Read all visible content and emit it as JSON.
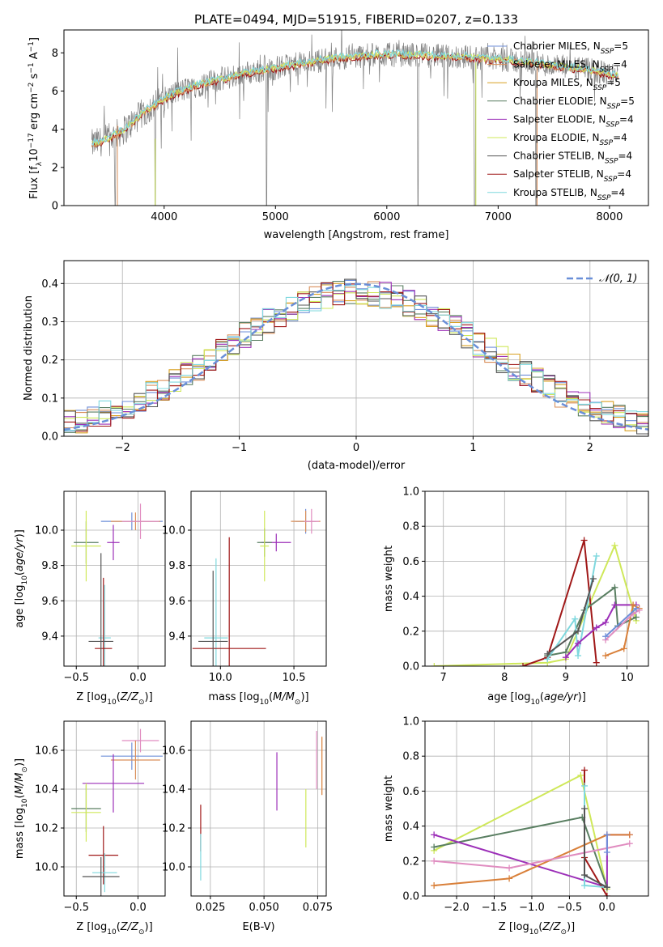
{
  "figure_title": "PLATE=0494, MJD=51915, FIBERID=0207, z=0.133",
  "colors": {
    "chabrier_miles": "#6f8fd9",
    "salpeter_miles": "#d98f5a",
    "kroupa_miles": "#d9a020",
    "chabrier_elodie": "#5a7f62",
    "salpeter_elodie": "#9c2fb8",
    "kroupa_elodie": "#cfe85a",
    "chabrier_stelib": "#555555",
    "salpeter_stelib": "#a01818",
    "kroupa_stelib": "#7fd8de",
    "data": "#808080",
    "pink": "#e08cc0",
    "orange": "#d9803a",
    "gaussian": "#6a8fd8"
  },
  "chart_data": [
    {
      "id": "spectrum",
      "type": "line",
      "title": "PLATE=0494, MJD=51915, FIBERID=0207, z=0.133",
      "xlabel": "wavelength [Angstrom, rest frame]",
      "ylabel": "Flux [f_λ 10^-17 erg cm^-2 s^-1 A^-1]",
      "xlim": [
        3100,
        8350
      ],
      "ylim": [
        0,
        9.2
      ],
      "xticks": [
        4000,
        5000,
        6000,
        7000,
        8000
      ],
      "yticks": [
        0,
        2,
        4,
        6,
        8
      ],
      "legend_position": "upper-right",
      "legend": [
        "Chabrier MILES, N_SSP=5",
        "Salpeter MILES, N_SSP=4",
        "Kroupa MILES, N_SSP=5",
        "Chabrier ELODIE, N_SSP=5",
        "Salpeter ELODIE, N_SSP=4",
        "Kroupa ELODIE, N_SSP=4",
        "Chabrier STELIB, N_SSP=4",
        "Salpeter STELIB, N_SSP=4",
        "Kroupa STELIB, N_SSP=4"
      ],
      "continuum": [
        [
          3350,
          3.2
        ],
        [
          3500,
          3.5
        ],
        [
          3650,
          4.0
        ],
        [
          3800,
          4.8
        ],
        [
          3950,
          5.4
        ],
        [
          4100,
          5.9
        ],
        [
          4300,
          6.3
        ],
        [
          4500,
          6.6
        ],
        [
          4700,
          6.9
        ],
        [
          4900,
          7.1
        ],
        [
          5100,
          7.3
        ],
        [
          5300,
          7.5
        ],
        [
          5500,
          7.7
        ],
        [
          5700,
          7.8
        ],
        [
          5900,
          7.9
        ],
        [
          6100,
          7.9
        ],
        [
          6300,
          7.9
        ],
        [
          6500,
          7.8
        ],
        [
          6700,
          7.8
        ],
        [
          6900,
          7.7
        ],
        [
          7100,
          7.6
        ],
        [
          7300,
          7.5
        ],
        [
          7500,
          7.3
        ],
        [
          7700,
          7.2
        ],
        [
          7900,
          7.0
        ],
        [
          8080,
          6.8
        ]
      ]
    },
    {
      "id": "residuals",
      "type": "histogram",
      "xlabel": "(data-model)/error",
      "ylabel": "Normed distribution",
      "xlim": [
        -2.5,
        2.5
      ],
      "ylim": [
        0,
        0.46
      ],
      "xticks": [
        -2,
        -1,
        0,
        1,
        2
      ],
      "yticks": [
        0.0,
        0.1,
        0.2,
        0.3,
        0.4
      ],
      "legend": [
        "𝒩(0, 1)"
      ],
      "legend_position": "upper-right",
      "bin_width": 0.1,
      "gaussian": {
        "mean": 0,
        "sigma": 1
      }
    },
    {
      "id": "age_vs_Z",
      "type": "errorbar",
      "xlabel": "Z [log10(Z/Z⊙)]",
      "ylabel": "age [log10(age/yr)]",
      "xlim": [
        -0.6,
        0.22
      ],
      "ylim": [
        9.23,
        10.22
      ],
      "xticks": [
        -0.5,
        0.0
      ],
      "yticks": [
        9.4,
        9.6,
        9.8,
        10.0
      ],
      "points": [
        {
          "c": "chabrier_miles",
          "x": -0.05,
          "y": 10.05,
          "xe": 0.25,
          "ye": 0.05
        },
        {
          "c": "salpeter_miles",
          "x": -0.02,
          "y": 10.05,
          "xe": 0.2,
          "ye": 0.05
        },
        {
          "c": "pink",
          "x": 0.02,
          "y": 10.05,
          "xe": 0.15,
          "ye": 0.1
        },
        {
          "c": "salpeter_elodie",
          "x": -0.2,
          "y": 9.93,
          "xe": 0.05,
          "ye": 0.1
        },
        {
          "c": "chabrier_elodie",
          "x": -0.42,
          "y": 9.93,
          "xe": 0.1,
          "ye": 0.12
        },
        {
          "c": "kroupa_elodie",
          "x": -0.42,
          "y": 9.91,
          "xe": 0.12,
          "ye": 0.2
        },
        {
          "c": "kroupa_stelib",
          "x": -0.27,
          "y": 9.39,
          "xe": 0.05,
          "ye": 0.3
        },
        {
          "c": "salpeter_stelib",
          "x": -0.28,
          "y": 9.33,
          "xe": 0.07,
          "ye": 0.4
        },
        {
          "c": "chabrier_stelib",
          "x": -0.3,
          "y": 9.37,
          "xe": 0.1,
          "ye": 0.5
        }
      ]
    },
    {
      "id": "age_vs_mass",
      "type": "errorbar",
      "xlabel": "mass [log10(M/M⊙)]",
      "ylabel": "",
      "xlim": [
        9.8,
        10.72
      ],
      "ylim": [
        9.23,
        10.22
      ],
      "xticks": [
        10.0,
        10.5
      ],
      "yticks": [
        9.4,
        9.6,
        9.8,
        10.0
      ],
      "points": [
        {
          "c": "chabrier_miles",
          "x": 10.58,
          "y": 10.05,
          "xe": 0.07,
          "ye": 0.07
        },
        {
          "c": "salpeter_miles",
          "x": 10.58,
          "y": 10.05,
          "xe": 0.1,
          "ye": 0.06
        },
        {
          "c": "pink",
          "x": 10.62,
          "y": 10.05,
          "xe": 0.05,
          "ye": 0.07
        },
        {
          "c": "salpeter_elodie",
          "x": 10.38,
          "y": 9.93,
          "xe": 0.1,
          "ye": 0.05
        },
        {
          "c": "chabrier_elodie",
          "x": 10.3,
          "y": 9.93,
          "xe": 0.05,
          "ye": 0.08
        },
        {
          "c": "kroupa_elodie",
          "x": 10.3,
          "y": 9.91,
          "xe": 0.03,
          "ye": 0.2
        },
        {
          "c": "kroupa_stelib",
          "x": 9.97,
          "y": 9.39,
          "xe": 0.08,
          "ye": 0.45
        },
        {
          "c": "salpeter_stelib",
          "x": 10.06,
          "y": 9.33,
          "xe": 0.25,
          "ye": 0.63
        },
        {
          "c": "chabrier_stelib",
          "x": 9.95,
          "y": 9.37,
          "xe": 0.1,
          "ye": 0.4
        }
      ]
    },
    {
      "id": "weight_vs_age",
      "type": "line",
      "xlabel": "age [log10(age/yr)]",
      "ylabel": "mass weight",
      "xlim": [
        6.7,
        10.35
      ],
      "ylim": [
        0,
        1.0
      ],
      "xticks": [
        7,
        8,
        9,
        10
      ],
      "yticks": [
        0.0,
        0.2,
        0.4,
        0.6,
        0.8,
        1.0
      ],
      "series": [
        {
          "c": "kroupa_elodie",
          "points": [
            [
              6.85,
              0.0
            ],
            [
              8.7,
              0.02
            ],
            [
              9.0,
              0.04
            ],
            [
              9.8,
              0.69
            ],
            [
              10.15,
              0.26
            ]
          ]
        },
        {
          "c": "salpeter_stelib",
          "points": [
            [
              8.3,
              0.0
            ],
            [
              8.7,
              0.05
            ],
            [
              9.3,
              0.72
            ],
            [
              9.5,
              0.02
            ]
          ]
        },
        {
          "c": "chabrier_elodie",
          "points": [
            [
              8.7,
              0.06
            ],
            [
              9.0,
              0.08
            ],
            [
              9.3,
              0.32
            ],
            [
              9.8,
              0.45
            ],
            [
              9.85,
              0.23
            ],
            [
              10.15,
              0.28
            ]
          ]
        },
        {
          "c": "kroupa_stelib",
          "points": [
            [
              8.7,
              0.04
            ],
            [
              9.15,
              0.27
            ],
            [
              9.2,
              0.06
            ],
            [
              9.5,
              0.63
            ]
          ]
        },
        {
          "c": "salpeter_elodie",
          "points": [
            [
              9.0,
              0.05
            ],
            [
              9.2,
              0.13
            ],
            [
              9.5,
              0.22
            ],
            [
              9.65,
              0.25
            ],
            [
              9.8,
              0.35
            ],
            [
              10.15,
              0.35
            ]
          ]
        },
        {
          "c": "chabrier_stelib",
          "points": [
            [
              8.7,
              0.07
            ],
            [
              9.2,
              0.2
            ],
            [
              9.45,
              0.5
            ]
          ]
        },
        {
          "c": "orange",
          "points": [
            [
              9.65,
              0.06
            ],
            [
              9.95,
              0.1
            ],
            [
              10.1,
              0.35
            ],
            [
              10.2,
              0.33
            ]
          ]
        },
        {
          "c": "pink",
          "points": [
            [
              9.65,
              0.15
            ],
            [
              10.1,
              0.3
            ],
            [
              10.2,
              0.32
            ]
          ]
        },
        {
          "c": "chabrier_miles",
          "points": [
            [
              9.65,
              0.17
            ],
            [
              10.15,
              0.33
            ]
          ]
        }
      ]
    },
    {
      "id": "mass_vs_Z",
      "type": "errorbar",
      "xlabel": "Z [log10(Z/Z⊙)]",
      "ylabel": "mass [log10(M/M⊙)]",
      "xlim": [
        -0.6,
        0.22
      ],
      "ylim": [
        9.85,
        10.75
      ],
      "xticks": [
        -0.5,
        0.0
      ],
      "yticks": [
        10.0,
        10.2,
        10.4,
        10.6
      ],
      "points": [
        {
          "c": "pink",
          "x": 0.02,
          "y": 10.65,
          "xe": 0.15,
          "ye": 0.06
        },
        {
          "c": "chabrier_miles",
          "x": -0.05,
          "y": 10.57,
          "xe": 0.25,
          "ye": 0.07
        },
        {
          "c": "salpeter_miles",
          "x": -0.02,
          "y": 10.55,
          "xe": 0.2,
          "ye": 0.1
        },
        {
          "c": "salpeter_elodie",
          "x": -0.2,
          "y": 10.43,
          "xe": 0.25,
          "ye": 0.15
        },
        {
          "c": "chabrier_elodie",
          "x": -0.42,
          "y": 10.3,
          "xe": 0.12,
          "ye": 0.12
        },
        {
          "c": "kroupa_elodie",
          "x": -0.42,
          "y": 10.28,
          "xe": 0.12,
          "ye": 0.15
        },
        {
          "c": "salpeter_stelib",
          "x": -0.28,
          "y": 10.06,
          "xe": 0.12,
          "ye": 0.15
        },
        {
          "c": "kroupa_stelib",
          "x": -0.27,
          "y": 9.97,
          "xe": 0.1,
          "ye": 0.1
        },
        {
          "c": "chabrier_stelib",
          "x": -0.3,
          "y": 9.95,
          "xe": 0.15,
          "ye": 0.1
        }
      ]
    },
    {
      "id": "mass_vs_ebv",
      "type": "errorbar",
      "xlabel": "E(B-V)",
      "ylabel": "",
      "xlim": [
        0.016,
        0.079
      ],
      "ylim": [
        9.85,
        10.75
      ],
      "xticks": [
        0.025,
        0.05,
        0.075
      ],
      "yticks": [
        10.0,
        10.2,
        10.4,
        10.6
      ],
      "points": [
        {
          "c": "salpeter_stelib",
          "x": 0.0205,
          "y": 10.2,
          "xe": 0.0,
          "ye": 0.12
        },
        {
          "c": "kroupa_stelib",
          "x": 0.0205,
          "y": 10.05,
          "xe": 0.0,
          "ye": 0.12
        },
        {
          "c": "salpeter_elodie",
          "x": 0.056,
          "y": 10.44,
          "xe": 0.0,
          "ye": 0.15
        },
        {
          "c": "kroupa_elodie",
          "x": 0.0695,
          "y": 10.25,
          "xe": 0.0,
          "ye": 0.15
        },
        {
          "c": "pink",
          "x": 0.0745,
          "y": 10.55,
          "xe": 0.0,
          "ye": 0.15
        },
        {
          "c": "orange",
          "x": 0.077,
          "y": 10.52,
          "xe": 0.0,
          "ye": 0.15
        }
      ]
    },
    {
      "id": "weight_vs_Z",
      "type": "line",
      "xlabel": "Z [log10(Z/Z⊙)]",
      "ylabel": "mass weight",
      "xlim": [
        -2.42,
        0.55
      ],
      "ylim": [
        0,
        1.0
      ],
      "xticks": [
        -2.0,
        -1.5,
        -1.0,
        -0.5,
        0.0
      ],
      "yticks": [
        0.0,
        0.2,
        0.4,
        0.6,
        0.8,
        1.0
      ],
      "series": [
        {
          "c": "kroupa_elodie",
          "points": [
            [
              -2.3,
              0.26
            ],
            [
              -0.35,
              0.69
            ],
            [
              0.0,
              0.04
            ]
          ]
        },
        {
          "c": "chabrier_elodie",
          "points": [
            [
              -2.3,
              0.28
            ],
            [
              -0.33,
              0.45
            ],
            [
              0.0,
              0.05
            ]
          ]
        },
        {
          "c": "salpeter_elodie",
          "points": [
            [
              -2.3,
              0.35
            ],
            [
              0.0,
              0.05
            ],
            [
              0.0,
              0.35
            ],
            [
              0.3,
              0.35
            ]
          ]
        },
        {
          "c": "orange",
          "points": [
            [
              -2.3,
              0.06
            ],
            [
              -1.3,
              0.1
            ],
            [
              0.0,
              0.35
            ],
            [
              0.3,
              0.35
            ]
          ]
        },
        {
          "c": "pink",
          "points": [
            [
              -2.3,
              0.2
            ],
            [
              -1.3,
              0.16
            ],
            [
              0.3,
              0.3
            ]
          ]
        },
        {
          "c": "salpeter_stelib",
          "points": [
            [
              -0.3,
              0.72
            ],
            [
              -0.3,
              0.22
            ],
            [
              0.0,
              0.0
            ]
          ]
        },
        {
          "c": "kroupa_stelib",
          "points": [
            [
              -0.3,
              0.63
            ],
            [
              -0.3,
              0.06
            ],
            [
              0.0,
              0.05
            ]
          ]
        },
        {
          "c": "chabrier_stelib",
          "points": [
            [
              -0.3,
              0.5
            ],
            [
              -0.3,
              0.12
            ],
            [
              0.0,
              0.05
            ]
          ]
        },
        {
          "c": "chabrier_miles",
          "points": [
            [
              0.0,
              0.25
            ],
            [
              0.0,
              0.35
            ]
          ]
        }
      ]
    }
  ]
}
